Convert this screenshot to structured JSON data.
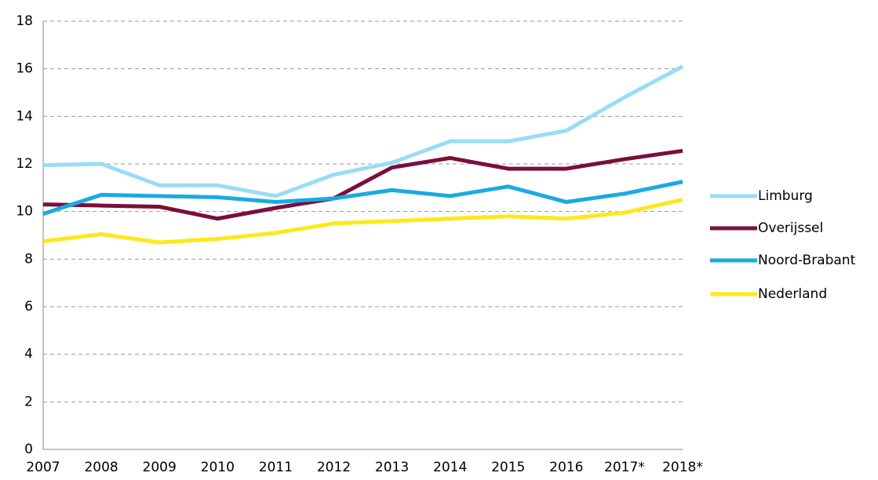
{
  "chart_data": {
    "type": "line",
    "categories": [
      "2007",
      "2008",
      "2009",
      "2010",
      "2011",
      "2012",
      "2013",
      "2014",
      "2015",
      "2016",
      "2017*",
      "2018*"
    ],
    "series": [
      {
        "name": "Limburg",
        "color": "#99ddf5",
        "values": [
          11.95,
          12.0,
          11.1,
          11.1,
          10.65,
          11.55,
          12.05,
          12.95,
          12.95,
          13.4,
          14.8,
          16.1
        ]
      },
      {
        "name": "Overijssel",
        "color": "#7a0e3d",
        "values": [
          10.3,
          10.25,
          10.2,
          9.7,
          10.15,
          10.55,
          11.85,
          12.25,
          11.8,
          11.8,
          12.2,
          12.55
        ]
      },
      {
        "name": "Noord-Brabant",
        "color": "#1aaae2",
        "values": [
          9.9,
          10.7,
          10.65,
          10.6,
          10.4,
          10.55,
          10.9,
          10.65,
          11.05,
          10.4,
          10.75,
          11.25
        ]
      },
      {
        "name": "Nederland",
        "color": "#ffe81a",
        "values": [
          8.75,
          9.05,
          8.7,
          8.85,
          9.1,
          9.5,
          9.6,
          9.7,
          9.8,
          9.7,
          9.95,
          10.5
        ]
      }
    ],
    "ylim": [
      0,
      18
    ],
    "yticks": [
      0,
      2,
      4,
      6,
      8,
      10,
      12,
      14,
      16,
      18
    ],
    "grid": true,
    "legend": "right"
  }
}
